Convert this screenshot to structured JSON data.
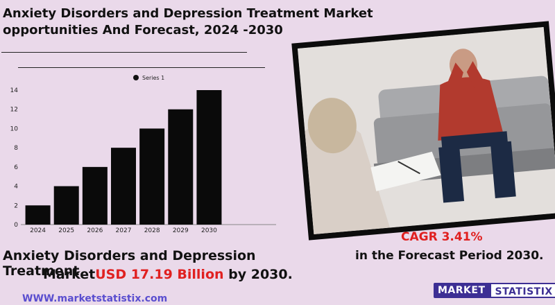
{
  "header": {
    "title_line1": "Anxiety Disorders and Depression Treatment Market",
    "title_line2": "opportunities And Forecast, 2024 -2030"
  },
  "chart_data": {
    "type": "bar",
    "categories": [
      "2024",
      "2025",
      "2026",
      "2027",
      "2028",
      "2029",
      "2030"
    ],
    "series": [
      {
        "name": "Series 1",
        "values": [
          2,
          4,
          6,
          8,
          10,
          12,
          14
        ]
      }
    ],
    "yticks": [
      "0",
      "2",
      "4",
      "6",
      "8",
      "10",
      "12",
      "14"
    ],
    "ylim": [
      0,
      14
    ],
    "legend_position": "top",
    "grid": false,
    "bar_color": "#0a0a0a"
  },
  "photo": {
    "icon": "therapy-session-photo"
  },
  "cagr": {
    "text": "CAGR  3.41%"
  },
  "forecast": {
    "text": "in the  Forecast Period  2030."
  },
  "summary": {
    "line1": "Anxiety Disorders and Depression Treatment",
    "market": "Market",
    "usd": "USD 17.19 Billion",
    "suffix": " by 2030."
  },
  "footer": {
    "website": "WWW.marketstatistix.com",
    "logo_part1": "MARKET",
    "logo_part2": "STATISTIX"
  },
  "colors": {
    "accent_red": "#e02020",
    "brand_purple": "#3d2f94",
    "background": "#ead9ea"
  }
}
